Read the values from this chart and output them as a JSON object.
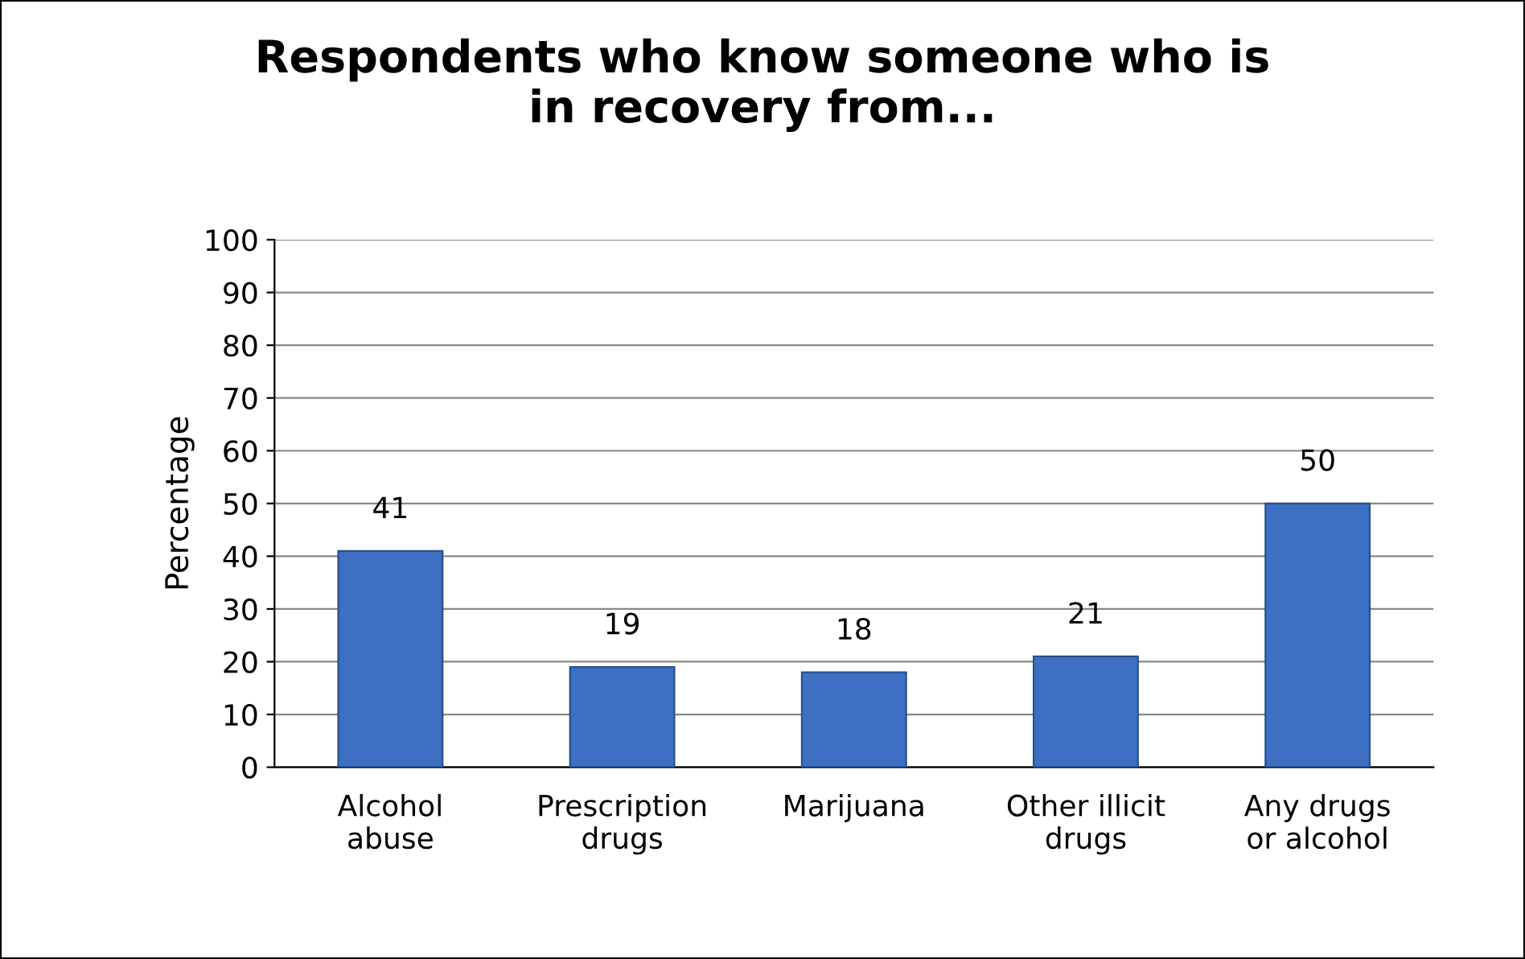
{
  "chart_data": {
    "type": "bar",
    "title": "Respondents who know someone who is\nin recovery from...",
    "ylabel": "Percentage",
    "categories": [
      "Alcohol\nabuse",
      "Prescription\ndrugs",
      "Marijuana",
      "Other illicit\ndrugs",
      "Any drugs\nor alcohol"
    ],
    "values": [
      41,
      19,
      18,
      21,
      50
    ],
    "color": "#3d6fc2",
    "ylim": [
      0,
      100
    ],
    "yticks": [
      0,
      10,
      20,
      30,
      40,
      50,
      60,
      70,
      80,
      90,
      100
    ],
    "grid": "y",
    "data_labels": true,
    "legend": false
  }
}
